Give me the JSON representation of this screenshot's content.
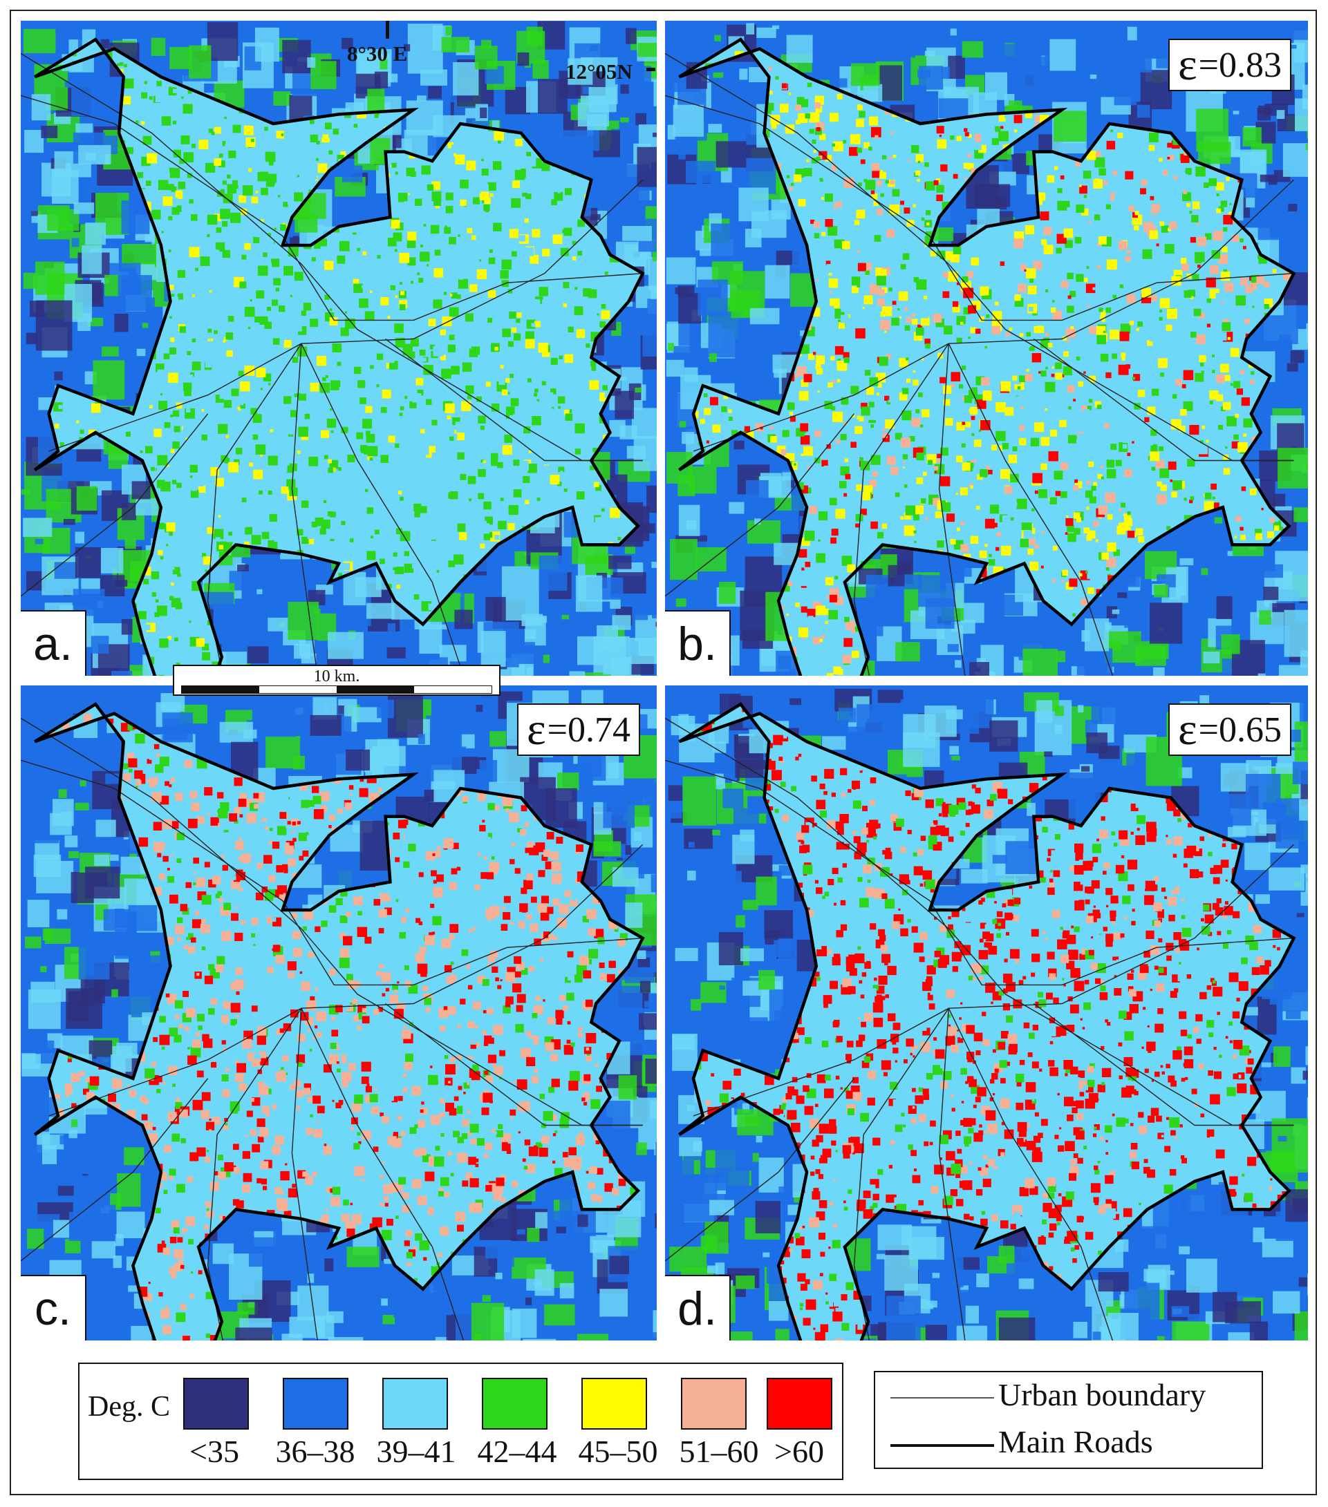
{
  "legend": {
    "title": "Deg. C",
    "classes": [
      {
        "label": "<35",
        "color": "#2f2f7e"
      },
      {
        "label": "36–38",
        "color": "#1e6fe6"
      },
      {
        "label": "39–41",
        "color": "#6dd8f7"
      },
      {
        "label": "42–44",
        "color": "#2ed61a"
      },
      {
        "label": "45–50",
        "color": "#fffb00"
      },
      {
        "label": "51–60",
        "color": "#f6b096"
      },
      {
        "label": ">60",
        "color": "#ff0000"
      }
    ]
  },
  "line_legend": {
    "urban_boundary": "Urban boundary",
    "main_roads": "Main Roads"
  },
  "coordinates": {
    "longitude": "8°30 E",
    "latitude": "12°05N"
  },
  "scale_bar": {
    "label": "10 km."
  },
  "panels": [
    {
      "letter": "a.",
      "emissivity_symbol": "",
      "emissivity_value": "",
      "style": "a"
    },
    {
      "letter": "b.",
      "emissivity_symbol": "ε",
      "emissivity_value": "=0.83",
      "style": "b"
    },
    {
      "letter": "c.",
      "emissivity_symbol": "ε",
      "emissivity_value": "=0.74",
      "style": "c"
    },
    {
      "letter": "d.",
      "emissivity_symbol": "ε",
      "emissivity_value": "=0.65",
      "style": "d"
    }
  ]
}
